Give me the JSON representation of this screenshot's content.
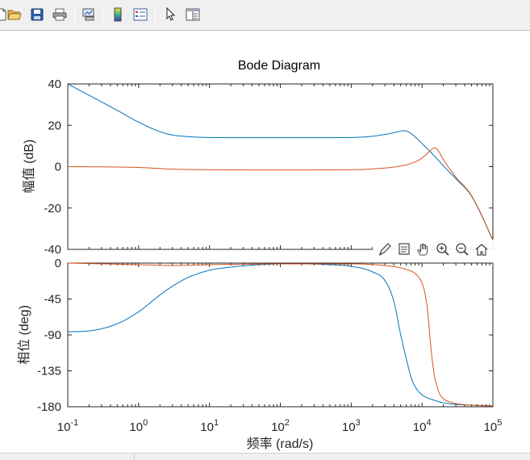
{
  "toolbar": {
    "buttons": [
      {
        "name": "new-figure-icon"
      },
      {
        "name": "open-file-icon"
      },
      {
        "name": "save-icon"
      },
      {
        "name": "print-icon"
      },
      {
        "name": "link-plot-icon"
      },
      {
        "name": "insert-colorbar-icon"
      },
      {
        "name": "insert-legend-icon"
      },
      {
        "name": "edit-plot-arrow-icon"
      },
      {
        "name": "property-inspector-icon"
      }
    ]
  },
  "axes_toolbar": {
    "buttons": [
      {
        "name": "brush-icon"
      },
      {
        "name": "datatip-icon"
      },
      {
        "name": "pan-hand-icon"
      },
      {
        "name": "zoom-in-icon"
      },
      {
        "name": "zoom-out-icon"
      },
      {
        "name": "restore-view-home-icon"
      }
    ]
  },
  "chart_data": {
    "type": "line",
    "title": "Bode Diagram",
    "xlabel": "频率  (rad/s)",
    "xscale": "log",
    "xlim": [
      0.1,
      100000
    ],
    "xticks": [
      {
        "value": 0.1,
        "base": "10",
        "exp": "-1"
      },
      {
        "value": 1,
        "base": "10",
        "exp": "0"
      },
      {
        "value": 10,
        "base": "10",
        "exp": "1"
      },
      {
        "value": 100,
        "base": "10",
        "exp": "2"
      },
      {
        "value": 1000,
        "base": "10",
        "exp": "3"
      },
      {
        "value": 10000,
        "base": "10",
        "exp": "4"
      },
      {
        "value": 100000,
        "base": "10",
        "exp": "5"
      }
    ],
    "colors": {
      "blue": "#0072BD",
      "orange": "#D95319"
    },
    "magnitude": {
      "ylabel": "幅值 (dB)",
      "ylim": [
        -40,
        40
      ],
      "yticks": [
        40,
        20,
        0,
        -20,
        -40
      ],
      "series": [
        {
          "color": "#0072BD",
          "x": [
            0.1,
            0.2,
            0.5,
            1,
            2,
            3,
            5,
            10,
            30,
            100,
            300,
            1000,
            2000,
            3000,
            4000,
            5000,
            5600,
            6500,
            8000,
            10000,
            15000,
            20000,
            30000,
            50000,
            100000
          ],
          "y": [
            40,
            34.5,
            27.2,
            21.5,
            16.9,
            15.3,
            14.5,
            14.1,
            14.0,
            14.0,
            14.0,
            14.1,
            14.7,
            15.6,
            16.4,
            17.2,
            17.4,
            16.7,
            14.4,
            11.2,
            5.1,
            0.4,
            -5.8,
            -14.3,
            -35.5
          ]
        },
        {
          "color": "#D95319",
          "x": [
            0.1,
            1,
            3,
            10,
            100,
            1000,
            2000,
            5000,
            8000,
            10000,
            12000,
            14000,
            15000,
            17000,
            20000,
            30000,
            50000,
            100000
          ],
          "y": [
            0.0,
            -0.4,
            -1.2,
            -1.5,
            -1.6,
            -1.5,
            -1.1,
            0.3,
            2.3,
            4.2,
            6.6,
            8.6,
            9.2,
            7.6,
            3.4,
            -5.0,
            -14.0,
            -35.3
          ]
        }
      ]
    },
    "phase": {
      "ylabel": "相位 (deg)",
      "ylim": [
        -180,
        0
      ],
      "yticks": [
        0,
        -45,
        -90,
        -135,
        -180
      ],
      "series": [
        {
          "color": "#0072BD",
          "x": [
            0.1,
            0.2,
            0.5,
            1,
            2,
            3,
            5,
            10,
            20,
            50,
            100,
            200,
            500,
            1000,
            2000,
            3000,
            4000,
            5000,
            6000,
            7000,
            8000,
            10000,
            15000,
            20000,
            30000,
            50000,
            100000
          ],
          "y": [
            -86,
            -85,
            -76,
            -61,
            -40,
            -29,
            -18,
            -9,
            -5,
            -2,
            -1,
            -1,
            -2,
            -4,
            -11,
            -22,
            -48,
            -90,
            -120,
            -143,
            -155,
            -165,
            -172,
            -175,
            -177,
            -178,
            -179
          ]
        },
        {
          "color": "#D95319",
          "x": [
            0.1,
            1,
            3,
            10,
            100,
            1000,
            3000,
            5000,
            7000,
            8000,
            10000,
            11000,
            12000,
            13000,
            14000,
            15000,
            16000,
            17000,
            18000,
            20000,
            25000,
            30000,
            50000,
            100000
          ],
          "y": [
            0,
            -2,
            -3,
            -2,
            -1,
            -1,
            -3,
            -6,
            -10,
            -13,
            -25,
            -38,
            -60,
            -95,
            -123,
            -142,
            -152,
            -160,
            -165,
            -170,
            -174,
            -176,
            -178,
            -179
          ]
        }
      ]
    }
  }
}
